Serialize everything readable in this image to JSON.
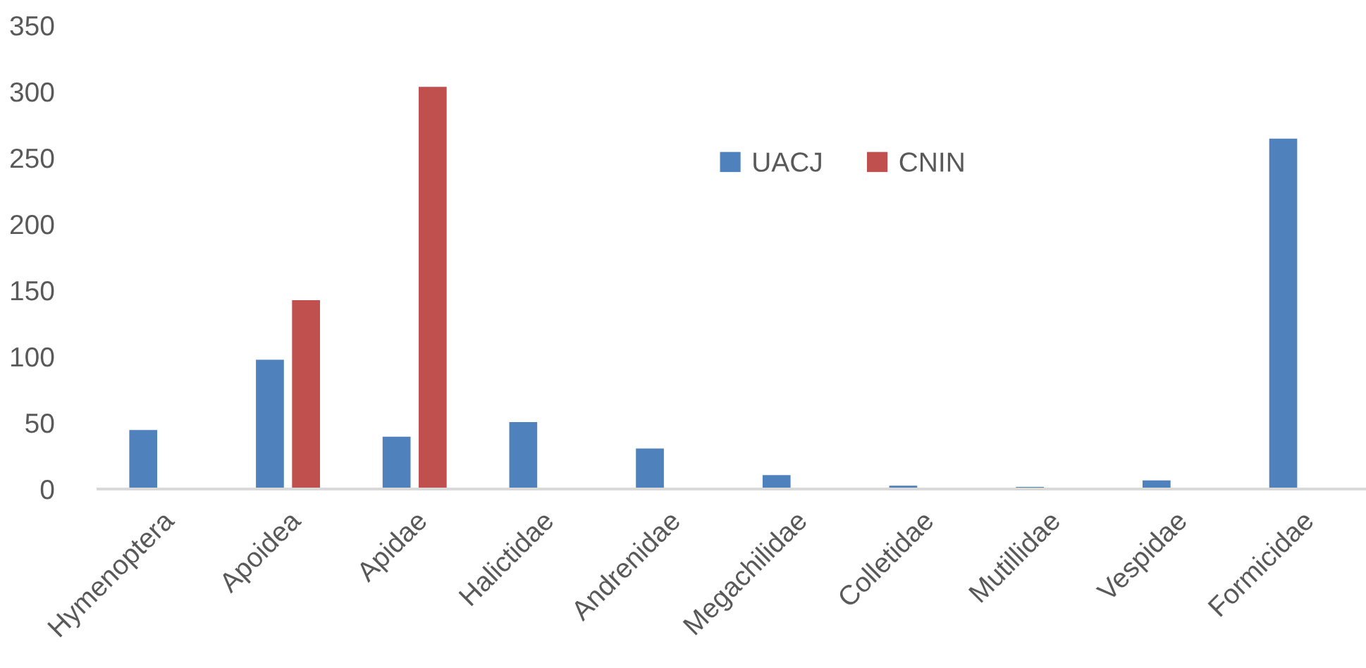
{
  "chart_data": {
    "type": "bar",
    "categories": [
      "Hymenoptera",
      "Apoidea",
      "Apidae",
      "Halictidae",
      "Andrenidae",
      "Megachilidae",
      "Colletidae",
      "Mutillidae",
      "Vespidae",
      "Formicidae"
    ],
    "series": [
      {
        "name": "UACJ",
        "color": "#4f81bd",
        "values": [
          45,
          98,
          40,
          51,
          31,
          11,
          3,
          2,
          7,
          265
        ]
      },
      {
        "name": "CNIN",
        "color": "#c0504d",
        "values": [
          null,
          143,
          304,
          null,
          null,
          null,
          null,
          null,
          null,
          null
        ]
      }
    ],
    "ylim": [
      0,
      350
    ],
    "yticks": [
      0,
      50,
      100,
      150,
      200,
      250,
      300,
      350
    ],
    "grid": false,
    "legend": "top"
  }
}
